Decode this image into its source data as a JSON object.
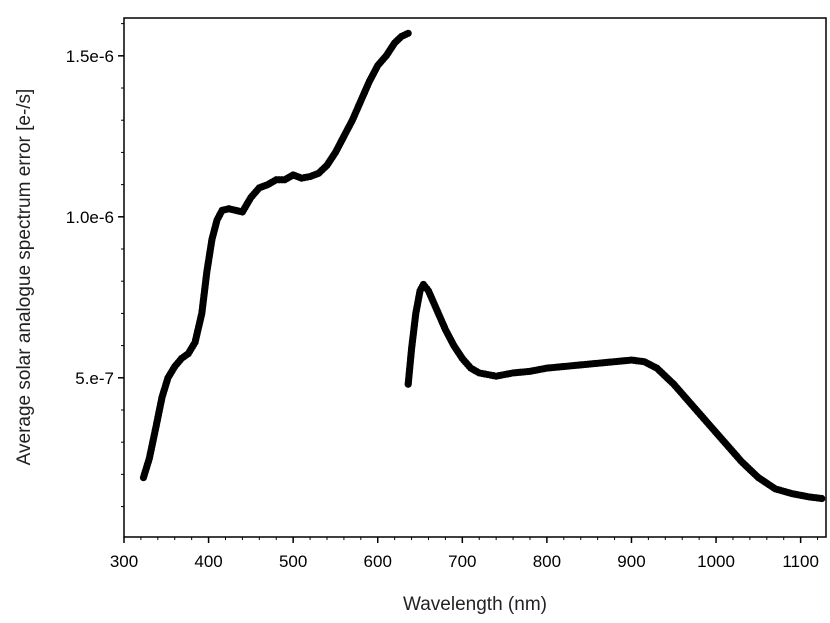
{
  "chart_data": {
    "type": "scatter",
    "title": "",
    "xlabel": "Wavelength (nm)",
    "ylabel": "Average solar analogue spectrum error [e-/s]",
    "xlim": [
      300,
      1130
    ],
    "ylim": [
      5.5e-09,
      1.6175e-06
    ],
    "xticks": [
      300,
      400,
      500,
      600,
      700,
      800,
      900,
      1000,
      1100
    ],
    "xtick_labels": [
      "300",
      "400",
      "500",
      "600",
      "700",
      "800",
      "900",
      "1000",
      "1100"
    ],
    "yticks": [
      5e-07,
      1e-06,
      1.5e-06
    ],
    "ytick_labels": [
      "5.e-7",
      "1.0e-6",
      "1.5e-6"
    ],
    "grid": false,
    "marker_color": "#000000",
    "series": [
      {
        "points": [
          [
            323,
            1.9e-07
          ],
          [
            330,
            2.5e-07
          ],
          [
            338,
            3.5e-07
          ],
          [
            345,
            4.4e-07
          ],
          [
            352,
            5e-07
          ],
          [
            360,
            5.35e-07
          ],
          [
            368,
            5.6e-07
          ],
          [
            376,
            5.75e-07
          ],
          [
            384,
            6.1e-07
          ],
          [
            392,
            7e-07
          ],
          [
            398,
            8.3e-07
          ],
          [
            404,
            9.3e-07
          ],
          [
            410,
            9.9e-07
          ],
          [
            416,
            1.02e-06
          ],
          [
            424,
            1.025e-06
          ],
          [
            432,
            1.02e-06
          ],
          [
            440,
            1.015e-06
          ],
          [
            450,
            1.06e-06
          ],
          [
            460,
            1.09e-06
          ],
          [
            470,
            1.1e-06
          ],
          [
            480,
            1.115e-06
          ],
          [
            490,
            1.115e-06
          ],
          [
            500,
            1.13e-06
          ],
          [
            510,
            1.12e-06
          ],
          [
            520,
            1.125e-06
          ],
          [
            530,
            1.135e-06
          ],
          [
            540,
            1.16e-06
          ],
          [
            550,
            1.2e-06
          ],
          [
            560,
            1.25e-06
          ],
          [
            570,
            1.3e-06
          ],
          [
            580,
            1.36e-06
          ],
          [
            590,
            1.42e-06
          ],
          [
            600,
            1.47e-06
          ],
          [
            610,
            1.5e-06
          ],
          [
            620,
            1.54e-06
          ],
          [
            628,
            1.56e-06
          ],
          [
            636,
            1.57e-06
          ]
        ]
      },
      {
        "points": [
          [
            636,
            4.8e-07
          ],
          [
            640,
            5.9e-07
          ],
          [
            645,
            7e-07
          ],
          [
            650,
            7.7e-07
          ],
          [
            654,
            7.9e-07
          ],
          [
            660,
            7.7e-07
          ],
          [
            670,
            7.1e-07
          ],
          [
            680,
            6.5e-07
          ],
          [
            690,
            6e-07
          ],
          [
            700,
            5.6e-07
          ],
          [
            710,
            5.3e-07
          ],
          [
            720,
            5.15e-07
          ],
          [
            730,
            5.1e-07
          ],
          [
            740,
            5.05e-07
          ],
          [
            750,
            5.1e-07
          ],
          [
            760,
            5.15e-07
          ],
          [
            780,
            5.2e-07
          ],
          [
            800,
            5.3e-07
          ],
          [
            820,
            5.35e-07
          ],
          [
            840,
            5.4e-07
          ],
          [
            860,
            5.45e-07
          ],
          [
            880,
            5.5e-07
          ],
          [
            900,
            5.55e-07
          ],
          [
            915,
            5.5e-07
          ],
          [
            930,
            5.3e-07
          ],
          [
            950,
            4.8e-07
          ],
          [
            970,
            4.2e-07
          ],
          [
            990,
            3.6e-07
          ],
          [
            1010,
            3e-07
          ],
          [
            1030,
            2.4e-07
          ],
          [
            1050,
            1.9e-07
          ],
          [
            1070,
            1.55e-07
          ],
          [
            1090,
            1.4e-07
          ],
          [
            1110,
            1.3e-07
          ],
          [
            1125,
            1.25e-07
          ]
        ]
      }
    ]
  }
}
